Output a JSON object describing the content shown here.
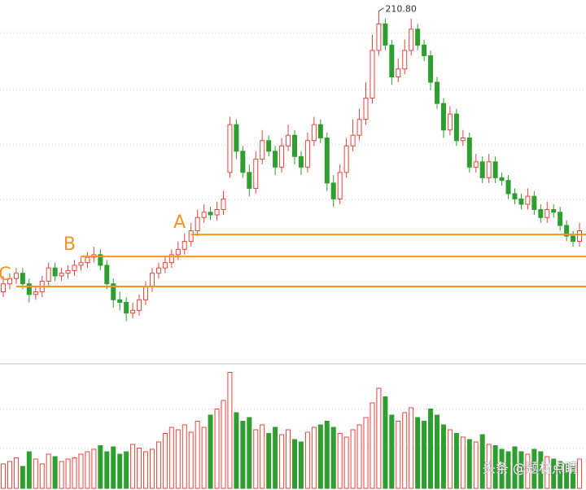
{
  "chart_data": {
    "type": "candlestick",
    "annotation": "210.80",
    "annotation_index": 58,
    "watermark": "头条 @题材点睛",
    "up_color": "#e8453c",
    "down_color": "#2e9e2e",
    "level_color": "#f7931e",
    "ylim": [
      80,
      215
    ],
    "gridlines": [
      139.8,
      160.4,
      181.2,
      202.7
    ],
    "levels": [
      {
        "label": "A",
        "value": 126.6,
        "start": 29
      },
      {
        "label": "B",
        "value": 118.3,
        "start": 12
      },
      {
        "label": "C",
        "value": 107.0,
        "start": 2
      }
    ],
    "open": [
      105,
      108,
      110,
      112,
      108,
      104,
      105,
      109,
      114,
      111,
      112,
      113,
      115,
      116,
      118,
      119,
      115,
      108,
      102,
      101,
      97,
      98,
      102,
      107,
      112,
      114,
      116,
      119,
      121,
      124,
      128,
      133,
      135,
      134,
      136,
      150,
      168,
      158,
      150,
      144,
      155,
      162,
      158,
      152,
      160,
      164,
      156,
      152,
      162,
      168,
      163,
      146,
      140,
      150,
      160,
      164,
      170,
      178,
      196,
      206,
      198,
      186,
      189,
      196,
      204,
      198,
      194,
      184,
      176,
      166,
      172,
      162,
      163,
      152,
      154,
      148,
      154,
      148,
      147,
      142,
      140,
      138,
      141,
      136,
      133,
      136,
      135,
      130,
      126,
      124
    ],
    "high": [
      111,
      112,
      114,
      114,
      110,
      107,
      111,
      116,
      116,
      114,
      115,
      117,
      118,
      120,
      122,
      121,
      117,
      110,
      105,
      103,
      101,
      104,
      109,
      114,
      116,
      118,
      121,
      124,
      127,
      131,
      136,
      138,
      137,
      139,
      143,
      171,
      170,
      160,
      153,
      158,
      166,
      164,
      160,
      163,
      168,
      166,
      158,
      165,
      171,
      170,
      165,
      149,
      153,
      163,
      170,
      174,
      184,
      202,
      210.8,
      208,
      200,
      193,
      200,
      208,
      206,
      200,
      196,
      186,
      178,
      175,
      174,
      166,
      165,
      157,
      156,
      157,
      156,
      150,
      149,
      144,
      142,
      144,
      143,
      138,
      139,
      138,
      137,
      132,
      128,
      131
    ],
    "low": [
      103,
      106,
      108,
      106,
      101,
      102,
      103,
      107,
      109,
      109,
      110,
      111,
      113,
      114,
      116,
      113,
      106,
      99,
      98,
      94,
      95,
      96,
      100,
      105,
      110,
      112,
      114,
      117,
      119,
      122,
      126,
      131,
      132,
      132,
      134,
      148,
      155,
      148,
      141,
      142,
      153,
      156,
      149,
      150,
      158,
      153,
      149,
      150,
      160,
      161,
      143,
      137,
      138,
      148,
      158,
      162,
      168,
      176,
      194,
      196,
      183,
      184,
      187,
      194,
      196,
      192,
      181,
      174,
      163,
      164,
      160,
      160,
      150,
      150,
      146,
      146,
      146,
      145,
      140,
      138,
      136,
      136,
      134,
      131,
      131,
      133,
      128,
      124,
      122,
      122
    ],
    "close": [
      108,
      110,
      112,
      108,
      104,
      105,
      109,
      114,
      111,
      112,
      113,
      115,
      116,
      118,
      119,
      115,
      108,
      102,
      101,
      97,
      98,
      102,
      107,
      112,
      114,
      116,
      119,
      121,
      124,
      128,
      133,
      135,
      134,
      136,
      140,
      168,
      158,
      150,
      144,
      155,
      162,
      158,
      152,
      160,
      164,
      156,
      152,
      162,
      168,
      163,
      146,
      140,
      150,
      160,
      164,
      170,
      178,
      196,
      206,
      198,
      186,
      189,
      196,
      204,
      198,
      194,
      184,
      176,
      166,
      172,
      162,
      163,
      152,
      154,
      148,
      154,
      148,
      147,
      142,
      140,
      138,
      141,
      136,
      133,
      136,
      135,
      130,
      126,
      124,
      128
    ],
    "volume_ylim": [
      0,
      100
    ],
    "volume_gridlines": [
      33,
      65
    ],
    "volume": [
      20,
      22,
      25,
      18,
      30,
      24,
      20,
      28,
      26,
      22,
      24,
      25,
      28,
      30,
      32,
      35,
      30,
      34,
      28,
      30,
      36,
      33,
      30,
      32,
      38,
      45,
      50,
      48,
      52,
      46,
      55,
      50,
      60,
      65,
      72,
      95,
      62,
      55,
      58,
      48,
      52,
      45,
      50,
      44,
      48,
      40,
      38,
      46,
      50,
      52,
      55,
      50,
      45,
      42,
      48,
      52,
      58,
      70,
      82,
      75,
      60,
      55,
      62,
      66,
      58,
      55,
      65,
      60,
      52,
      48,
      45,
      42,
      40,
      38,
      44,
      36,
      35,
      32,
      30,
      34,
      30,
      28,
      32,
      30,
      26,
      24,
      22,
      20,
      18,
      24
    ]
  }
}
